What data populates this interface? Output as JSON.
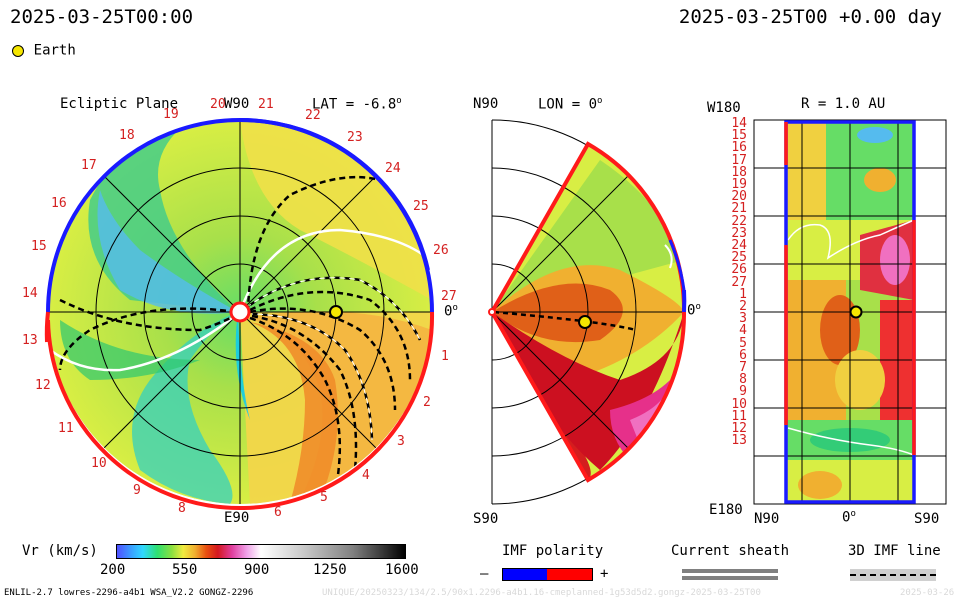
{
  "header": {
    "left_time": "2025-03-25T00:00",
    "right_time": "2025-03-25T00 +0.00 day"
  },
  "legend": {
    "earth_label": "Earth",
    "earth_color": "#f5e600"
  },
  "ecliptic": {
    "title": "Ecliptic Plane",
    "top_label": "W90",
    "bottom_label": "E90",
    "lat_label": "LAT = -6.8",
    "lat_degree": "o",
    "right_zero": "0",
    "right_zero_degree": "o",
    "carrington_top": [
      "19",
      "20",
      "21",
      "22",
      "23"
    ],
    "carrington_right": [
      "24",
      "25",
      "26",
      "27",
      "1",
      "2",
      "3",
      "4"
    ],
    "carrington_left": [
      "18",
      "17",
      "16",
      "15",
      "14",
      "13",
      "12",
      "11",
      "10",
      "9",
      "8"
    ],
    "carrington_bottom": [
      "5",
      "6"
    ]
  },
  "meridional": {
    "top_label": "N90",
    "bottom_label": "S90",
    "lon_label": "LON = 0",
    "lon_degree": "o",
    "right_zero": "0",
    "right_zero_degree": "o"
  },
  "synoptic": {
    "title": "R = 1.0 AU",
    "top_left_label": "W180",
    "bottom_left_label": "E180",
    "y_ticks": [
      "14",
      "15",
      "16",
      "17",
      "18",
      "19",
      "20",
      "21",
      "22",
      "23",
      "24",
      "25",
      "26",
      "27",
      "1",
      "2",
      "3",
      "4",
      "5",
      "6",
      "7",
      "8",
      "9",
      "10",
      "11",
      "12",
      "13"
    ],
    "x_labels": {
      "left": "N90",
      "mid": "0",
      "mid_degree": "o",
      "right": "S90"
    }
  },
  "colorbar": {
    "title": "Vr (km/s)",
    "ticks": [
      "200",
      "550",
      "900",
      "1250",
      "1600"
    ],
    "range": [
      200,
      1600
    ]
  },
  "imf": {
    "title": "IMF polarity",
    "minus": "–",
    "plus": "+",
    "neg_color": "#0000ff",
    "pos_color": "#ff0000"
  },
  "sheath": {
    "title": "Current sheath"
  },
  "imf_line": {
    "title": "3D IMF line"
  },
  "footer": {
    "left": "ENLIL-2.7 lowres-2296-a4b1 WSA_V2.2 GONGZ-2296",
    "right_faint": "UNIQUE/20250323/134/2.5/90x1.2296-a4b1.16-cmeplanned-1g53d5d2.gongz-2025-03-25T00",
    "corner_faint": "2025-03-26"
  },
  "colors": {
    "boundary_blue": "#1a1aff",
    "boundary_red": "#ff1a1a",
    "carrington_red": "#d42020"
  }
}
